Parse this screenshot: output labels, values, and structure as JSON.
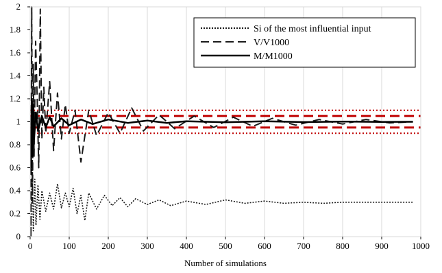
{
  "chart_data": {
    "type": "line",
    "title": "",
    "xlabel": "Number of simulations",
    "ylabel": "",
    "xlim": [
      0,
      1000
    ],
    "ylim": [
      0,
      2
    ],
    "x_ticks": [
      0,
      100,
      200,
      300,
      400,
      500,
      600,
      700,
      800,
      900,
      1000
    ],
    "y_ticks": [
      0,
      0.2,
      0.4,
      0.6,
      0.8,
      1,
      1.2,
      1.4,
      1.6,
      1.8,
      2
    ],
    "x_tick_labels": [
      "0",
      "100",
      "200",
      "300",
      "400",
      "500",
      "600",
      "700",
      "800",
      "900",
      "1000"
    ],
    "y_tick_labels": [
      "0",
      "0.2",
      "0.4",
      "0.6",
      "0.8",
      "1",
      "1.2",
      "1.4",
      "1.6",
      "1.8",
      "2"
    ],
    "grid": "vertical",
    "legend_position": "top-right",
    "series": [
      {
        "name": "Si of the most influential input",
        "style": "dotted",
        "color": "#1a1a1a",
        "x": [
          2,
          5,
          8,
          12,
          15,
          20,
          25,
          30,
          40,
          50,
          60,
          70,
          80,
          90,
          100,
          110,
          120,
          130,
          140,
          150,
          170,
          190,
          210,
          230,
          250,
          270,
          300,
          330,
          360,
          400,
          450,
          500,
          550,
          600,
          650,
          700,
          750,
          800,
          850,
          900,
          950,
          980
        ],
        "y": [
          0.0,
          0.65,
          0.05,
          0.5,
          0.1,
          0.45,
          0.15,
          0.4,
          0.22,
          0.38,
          0.24,
          0.46,
          0.25,
          0.38,
          0.26,
          0.42,
          0.2,
          0.36,
          0.14,
          0.38,
          0.24,
          0.36,
          0.27,
          0.34,
          0.26,
          0.33,
          0.28,
          0.32,
          0.27,
          0.31,
          0.28,
          0.32,
          0.29,
          0.31,
          0.29,
          0.3,
          0.29,
          0.3,
          0.3,
          0.3,
          0.3,
          0.3
        ],
        "band": [
          0.09,
          0.07,
          0.05,
          0.04,
          0.03,
          0.02,
          0.015,
          0.012,
          0.01,
          0.008,
          0.006,
          0.005,
          0.004
        ]
      },
      {
        "name": "V/V1000",
        "style": "dashed",
        "color": "#1a1a1a",
        "x": [
          2,
          4,
          6,
          8,
          10,
          14,
          18,
          22,
          26,
          30,
          35,
          40,
          50,
          60,
          70,
          80,
          90,
          100,
          115,
          130,
          150,
          170,
          200,
          230,
          260,
          290,
          330,
          370,
          420,
          470,
          520,
          570,
          620,
          680,
          740,
          800,
          860,
          920,
          980
        ],
        "y": [
          0.0,
          2.0,
          0.3,
          1.5,
          0.7,
          1.7,
          1.2,
          0.6,
          1.98,
          0.85,
          1.3,
          0.9,
          1.35,
          0.75,
          1.25,
          0.85,
          1.15,
          0.9,
          1.1,
          0.65,
          1.1,
          0.88,
          1.08,
          0.9,
          1.12,
          0.92,
          1.06,
          0.94,
          1.05,
          0.95,
          1.04,
          0.96,
          1.03,
          0.97,
          1.02,
          0.98,
          1.02,
          0.99,
          1.0
        ]
      },
      {
        "name": "M/M1000",
        "style": "solid",
        "color": "#000000",
        "x": [
          2,
          4,
          6,
          8,
          10,
          15,
          20,
          30,
          40,
          50,
          60,
          80,
          100,
          130,
          160,
          200,
          250,
          300,
          350,
          400,
          500,
          600,
          700,
          800,
          900,
          980
        ],
        "y": [
          0.55,
          1.2,
          0.7,
          1.15,
          0.85,
          1.08,
          0.92,
          1.05,
          0.95,
          1.04,
          0.96,
          1.03,
          0.97,
          1.02,
          0.98,
          1.02,
          0.99,
          1.01,
          0.99,
          1.005,
          0.995,
          1.004,
          0.997,
          1.002,
          0.999,
          1.0
        ]
      }
    ],
    "reference_lines": [
      {
        "style": "dashed",
        "color": "#c00000",
        "values": [
          0.95,
          1.05
        ]
      },
      {
        "style": "dotted",
        "color": "#c00000",
        "values": [
          0.9,
          1.1
        ]
      }
    ]
  }
}
